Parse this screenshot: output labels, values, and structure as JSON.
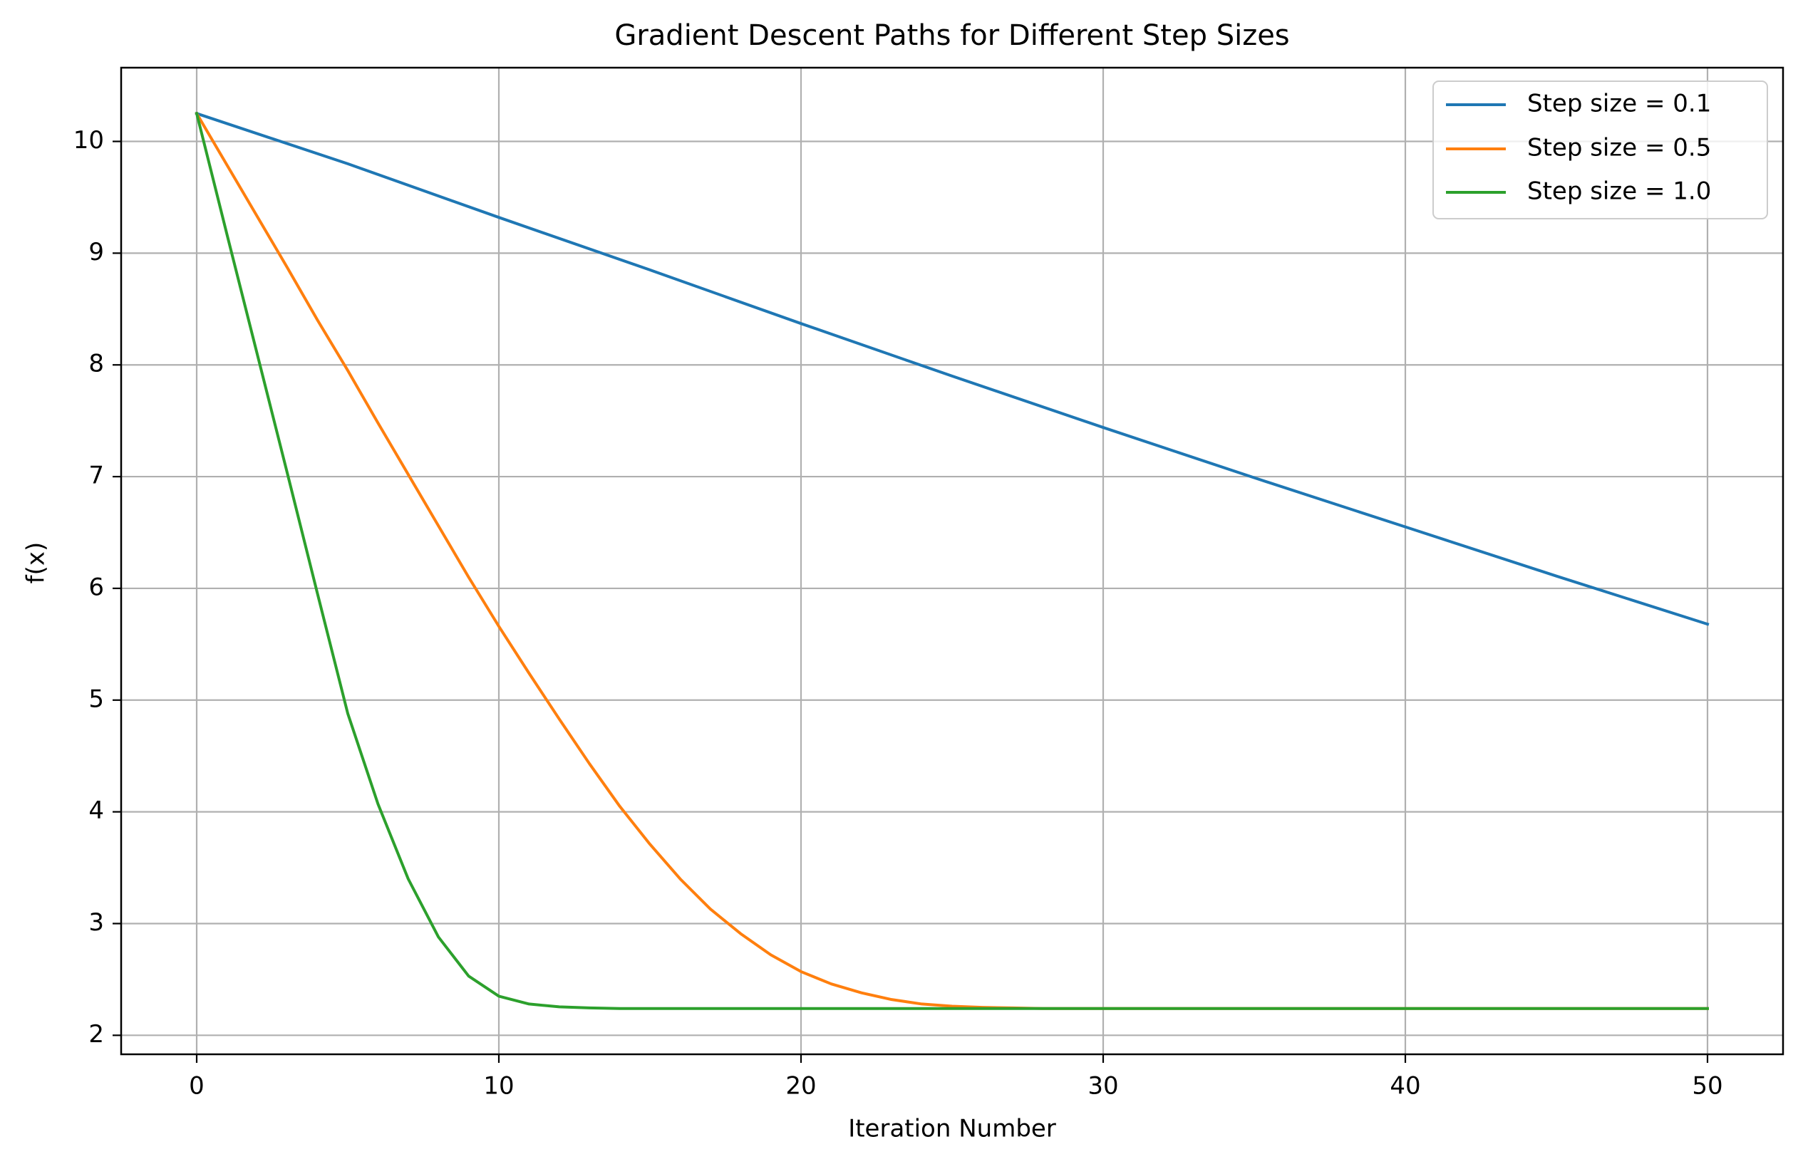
{
  "chart_data": {
    "type": "line",
    "title": "Gradient Descent Paths for Different Step Sizes",
    "xlabel": "Iteration Number",
    "ylabel": "f(x)",
    "xlim": [
      -2.5,
      52.5
    ],
    "ylim": [
      1.83,
      10.66
    ],
    "xticks": [
      0,
      10,
      20,
      30,
      40,
      50
    ],
    "yticks": [
      2,
      3,
      4,
      5,
      6,
      7,
      8,
      9,
      10
    ],
    "grid": true,
    "legend_position": "top-right",
    "series": [
      {
        "name": "Step size = 0.1",
        "color": "#1f77b4",
        "x": [
          0,
          5,
          10,
          15,
          20,
          25,
          30,
          35,
          40,
          45,
          50
        ],
        "y": [
          10.25,
          9.8,
          9.32,
          8.85,
          8.37,
          7.9,
          7.44,
          6.99,
          6.55,
          6.11,
          5.68
        ]
      },
      {
        "name": "Step size = 0.5",
        "color": "#ff7f0e",
        "x": [
          0,
          1,
          2,
          3,
          4,
          5,
          6,
          7,
          8,
          9,
          10,
          11,
          12,
          13,
          14,
          15,
          16,
          17,
          18,
          19,
          20,
          21,
          22,
          23,
          24,
          25,
          26,
          27,
          28,
          29,
          30,
          35,
          40,
          45,
          50
        ],
        "y": [
          10.25,
          9.79,
          9.33,
          8.87,
          8.4,
          7.95,
          7.48,
          7.02,
          6.56,
          6.1,
          5.66,
          5.24,
          4.83,
          4.43,
          4.05,
          3.71,
          3.4,
          3.13,
          2.91,
          2.72,
          2.57,
          2.46,
          2.38,
          2.32,
          2.28,
          2.26,
          2.25,
          2.245,
          2.24,
          2.24,
          2.24,
          2.24,
          2.24,
          2.24,
          2.24
        ]
      },
      {
        "name": "Step size = 1.0",
        "color": "#2ca02c",
        "x": [
          0,
          1,
          2,
          3,
          4,
          5,
          6,
          7,
          8,
          9,
          10,
          11,
          12,
          13,
          14,
          15,
          20,
          25,
          30,
          35,
          40,
          45,
          50
        ],
        "y": [
          10.25,
          9.17,
          8.1,
          7.03,
          5.95,
          4.88,
          4.07,
          3.4,
          2.88,
          2.53,
          2.35,
          2.28,
          2.255,
          2.245,
          2.24,
          2.24,
          2.24,
          2.24,
          2.24,
          2.24,
          2.24,
          2.24,
          2.24
        ]
      }
    ]
  }
}
